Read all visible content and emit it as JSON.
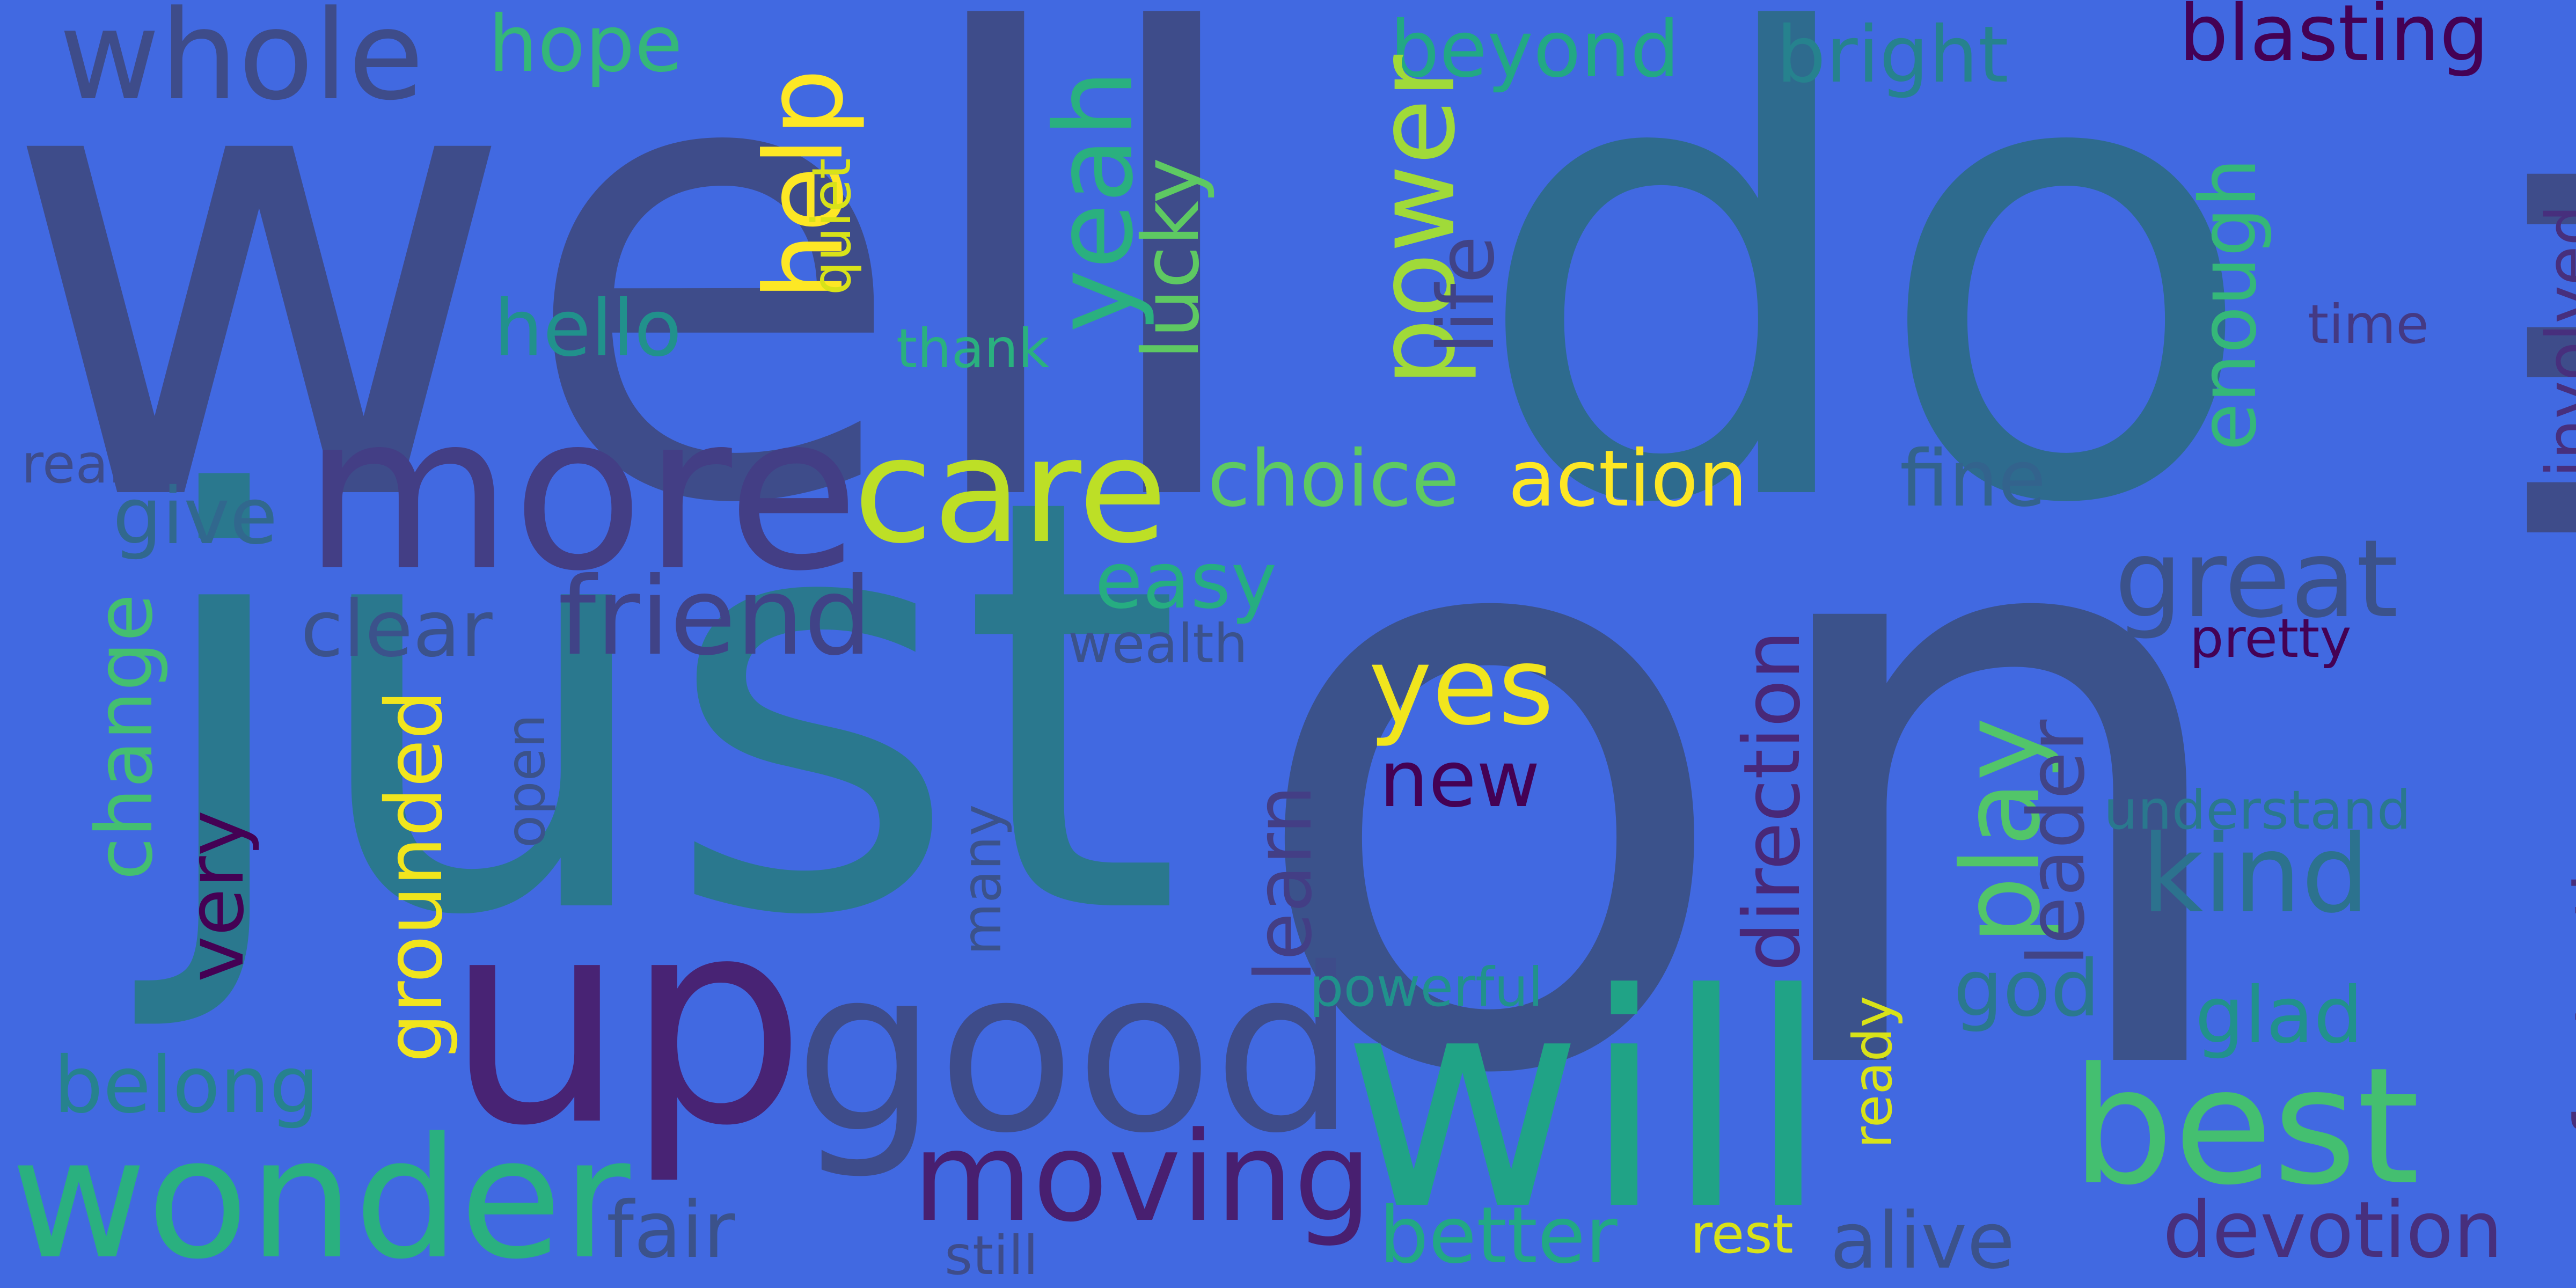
{
  "background_color": "#4169e1",
  "words": [
    {
      "text": "well",
      "color": "#3e4c8a",
      "vertical": false
    },
    {
      "text": "do",
      "color": "#2e6b8e",
      "vertical": false
    },
    {
      "text": "on",
      "color": "#3b528b",
      "vertical": false
    },
    {
      "text": "just",
      "color": "#2a788e",
      "vertical": false
    },
    {
      "text": "like",
      "color": "#3e4c8a",
      "vertical": true
    },
    {
      "text": "more",
      "color": "#433e85",
      "vertical": false
    },
    {
      "text": "will",
      "color": "#20a386",
      "vertical": false
    },
    {
      "text": "up",
      "color": "#482374",
      "vertical": false
    },
    {
      "text": "good",
      "color": "#3e4c8a",
      "vertical": false
    },
    {
      "text": "wonder",
      "color": "#2ab07f",
      "vertical": false
    },
    {
      "text": "care",
      "color": "#bddf26",
      "vertical": false
    },
    {
      "text": "best",
      "color": "#44bf70",
      "vertical": false
    },
    {
      "text": "moving",
      "color": "#481f70",
      "vertical": false
    },
    {
      "text": "friend",
      "color": "#404387",
      "vertical": false
    },
    {
      "text": "whole",
      "color": "#3e4c8a",
      "vertical": false
    },
    {
      "text": "yes",
      "color": "#f1e51d",
      "vertical": false
    },
    {
      "text": "great",
      "color": "#3b528b",
      "vertical": false
    },
    {
      "text": "kind",
      "color": "#2c728e",
      "vertical": false
    },
    {
      "text": "devotion",
      "color": "#472f7d",
      "vertical": false
    },
    {
      "text": "blasting",
      "color": "#440154",
      "vertical": false
    },
    {
      "text": "action",
      "color": "#fde725",
      "vertical": false
    },
    {
      "text": "choice",
      "color": "#5ec962",
      "vertical": false
    },
    {
      "text": "beyond",
      "color": "#22a884",
      "vertical": false
    },
    {
      "text": "bright",
      "color": "#26828e",
      "vertical": false
    },
    {
      "text": "hope",
      "color": "#35b779",
      "vertical": false
    },
    {
      "text": "hello",
      "color": "#21918c",
      "vertical": false
    },
    {
      "text": "easy",
      "color": "#26ad81",
      "vertical": false
    },
    {
      "text": "fine",
      "color": "#33638d",
      "vertical": false
    },
    {
      "text": "new",
      "color": "#440154",
      "vertical": false
    },
    {
      "text": "better",
      "color": "#22a884",
      "vertical": false
    },
    {
      "text": "alive",
      "color": "#3b528b",
      "vertical": false
    },
    {
      "text": "glad",
      "color": "#21918c",
      "vertical": false
    },
    {
      "text": "god",
      "color": "#2a788e",
      "vertical": false
    },
    {
      "text": "fair",
      "color": "#3b528b",
      "vertical": false
    },
    {
      "text": "give",
      "color": "#31688e",
      "vertical": false
    },
    {
      "text": "clear",
      "color": "#3b528b",
      "vertical": false
    },
    {
      "text": "belong",
      "color": "#26828e",
      "vertical": false
    },
    {
      "text": "rest",
      "color": "#d8e219",
      "vertical": false
    },
    {
      "text": "pretty",
      "color": "#440154",
      "vertical": false
    },
    {
      "text": "thank",
      "color": "#2ab07f",
      "vertical": false
    },
    {
      "text": "wealth",
      "color": "#3b528b",
      "vertical": false
    },
    {
      "text": "understand",
      "color": "#2a788e",
      "vertical": false
    },
    {
      "text": "powerful",
      "color": "#21918c",
      "vertical": false
    },
    {
      "text": "still",
      "color": "#3e4c8a",
      "vertical": false
    },
    {
      "text": "real",
      "color": "#3e4c8a",
      "vertical": false
    },
    {
      "text": "time",
      "color": "#443983",
      "vertical": false
    },
    {
      "text": "help",
      "color": "#fde725",
      "vertical": true
    },
    {
      "text": "yeah",
      "color": "#2ab07f",
      "vertical": true
    },
    {
      "text": "power",
      "color": "#a0da39",
      "vertical": true
    },
    {
      "text": "life",
      "color": "#404387",
      "vertical": true
    },
    {
      "text": "lucky",
      "color": "#5ec962",
      "vertical": true
    },
    {
      "text": "quiet",
      "color": "#d8e219",
      "vertical": true
    },
    {
      "text": "enough",
      "color": "#35b779",
      "vertical": true
    },
    {
      "text": "involved",
      "color": "#472f7d",
      "vertical": true
    },
    {
      "text": "change",
      "color": "#44bf70",
      "vertical": true
    },
    {
      "text": "very",
      "color": "#440154",
      "vertical": true
    },
    {
      "text": "grounded",
      "color": "#f1e51d",
      "vertical": true
    },
    {
      "text": "open",
      "color": "#3b528b",
      "vertical": true
    },
    {
      "text": "many",
      "color": "#3b528b",
      "vertical": true
    },
    {
      "text": "learn",
      "color": "#433e85",
      "vertical": true
    },
    {
      "text": "direction",
      "color": "#482878",
      "vertical": true
    },
    {
      "text": "play",
      "color": "#52c569",
      "vertical": true
    },
    {
      "text": "leader",
      "color": "#414487",
      "vertical": true
    },
    {
      "text": "fantastic",
      "color": "#472f7d",
      "vertical": true
    },
    {
      "text": "ready",
      "color": "#d8e219",
      "vertical": true
    }
  ]
}
